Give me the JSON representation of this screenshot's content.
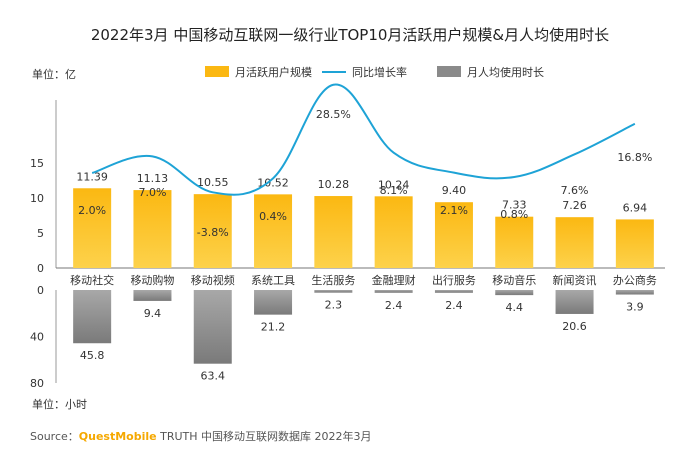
{
  "chart_data": {
    "type": "bar",
    "title": "2022年3月 中国移动互联网一级行业TOP10月活跃用户规模&月人均使用时长",
    "categories": [
      "移动社交",
      "移动购物",
      "移动视频",
      "系统工具",
      "生活服务",
      "金融理财",
      "出行服务",
      "移动音乐",
      "新闻资讯",
      "办公商务"
    ],
    "series": [
      {
        "name": "月活跃用户规模",
        "unit_label": "单位：亿",
        "values": [
          11.39,
          11.13,
          10.55,
          10.52,
          10.28,
          10.24,
          9.4,
          7.33,
          7.26,
          6.94
        ],
        "labels": [
          "11.39",
          "11.13",
          "10.55",
          "10.52",
          "10.28",
          "10.24",
          "9.40",
          "7.33",
          "7.26",
          "6.94"
        ]
      },
      {
        "name": "同比增长率",
        "values": [
          2.0,
          7.0,
          -3.8,
          0.4,
          28.5,
          8.1,
          2.1,
          0.8,
          7.6,
          16.8
        ],
        "labels": [
          "2.0%",
          "7.0%",
          "-3.8%",
          "0.4%",
          "28.5%",
          "8.1%",
          "2.1%",
          "0.8%",
          "7.6%",
          "16.8%"
        ]
      },
      {
        "name": "月人均使用时长",
        "unit_label": "单位：小时",
        "values": [
          45.8,
          9.4,
          63.4,
          21.2,
          2.3,
          2.4,
          2.4,
          4.4,
          20.6,
          3.9
        ],
        "labels": [
          "45.8",
          "9.4",
          "63.4",
          "21.2",
          "2.3",
          "2.4",
          "2.4",
          "4.4",
          "20.6",
          "3.9"
        ]
      }
    ],
    "top_axis": {
      "ylim": [
        0,
        15
      ],
      "ticks": [
        "0",
        "5",
        "10",
        "15"
      ]
    },
    "bottom_axis": {
      "ylim": [
        0,
        80
      ],
      "ticks": [
        "0",
        "40",
        "80"
      ],
      "inverted": true
    },
    "legend_position": "top",
    "colors": {
      "bar_top": "#fbb812",
      "bar_top_light": "#fdd24b",
      "line": "#1ea3d6",
      "bar_bottom": "#8a8a8a",
      "axis": "#555555"
    }
  },
  "source": {
    "prefix": "Source：",
    "brand": "QuestMobile",
    "text": " TRUTH 中国移动互联网数据库 2022年3月"
  }
}
